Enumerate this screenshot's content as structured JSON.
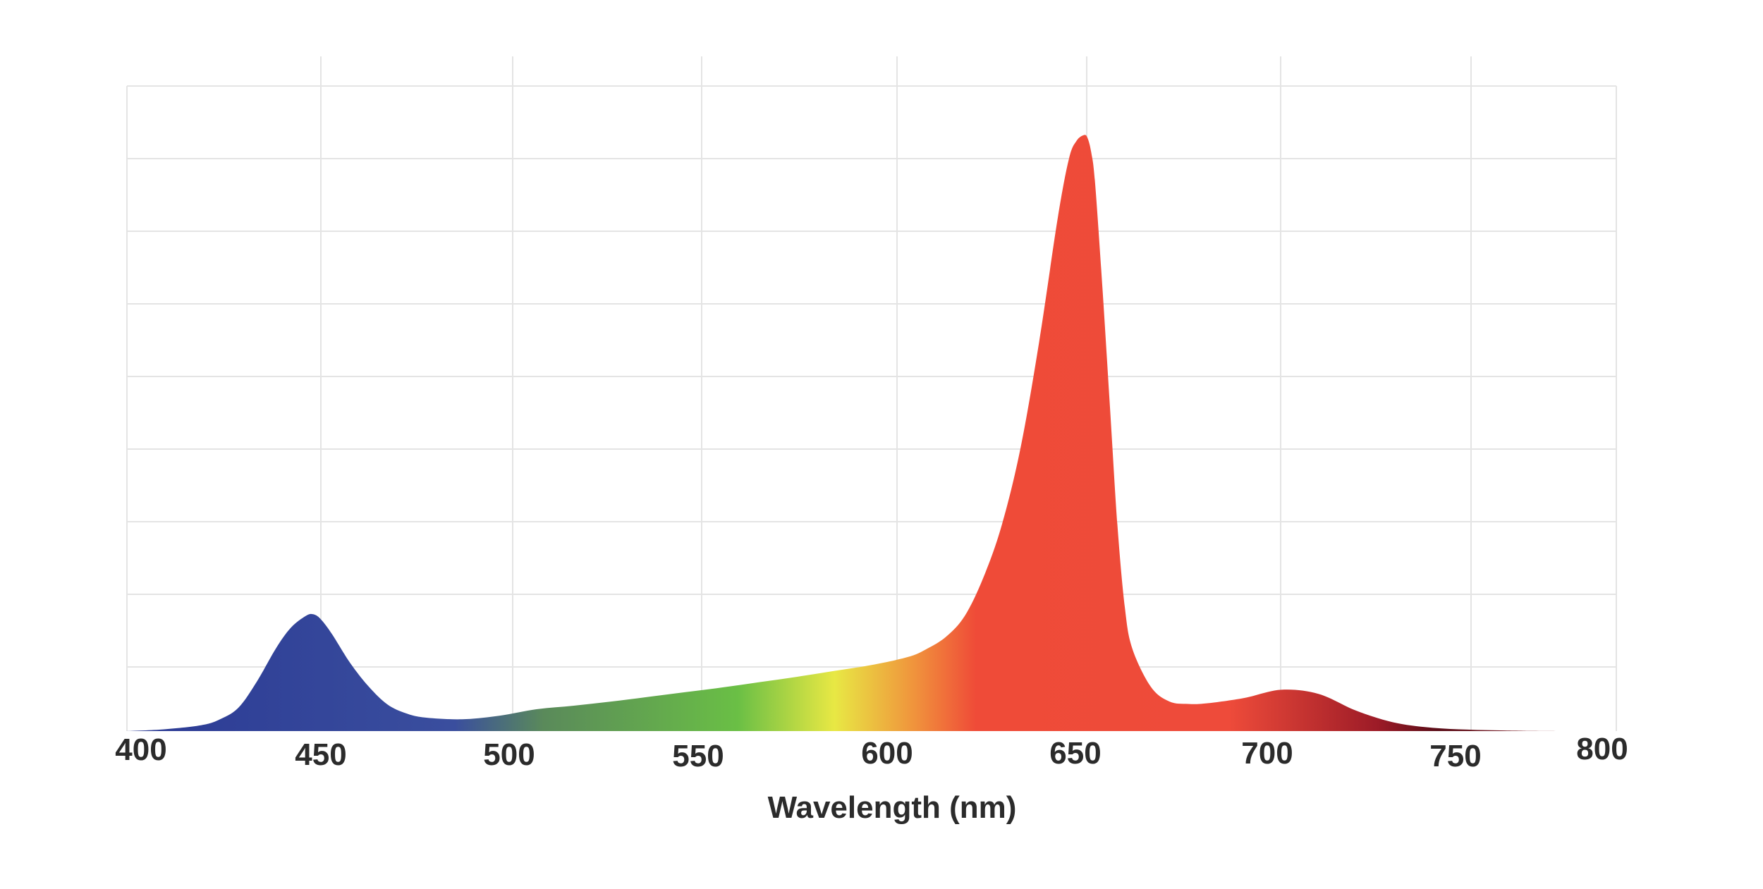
{
  "chart_data": {
    "type": "area",
    "title": "",
    "xlabel": "Wavelength (nm)",
    "ylabel": "",
    "xlim": [
      400,
      800
    ],
    "ylim": [
      0,
      100
    ],
    "x_ticks": [
      "400",
      "450",
      "500",
      "550",
      "600",
      "650",
      "700",
      "750",
      "800"
    ],
    "grid": true,
    "legend": "none",
    "series": [
      {
        "x": [
          400,
          410,
          420,
          425,
          430,
          435,
          440,
          444,
          448,
          450,
          452,
          455,
          460,
          465,
          470,
          475,
          480,
          490,
          500,
          510,
          520,
          530,
          540,
          550,
          560,
          570,
          580,
          590,
          600,
          610,
          615,
          620,
          625,
          630,
          635,
          640,
          645,
          650,
          653,
          655,
          657,
          658,
          659,
          660,
          662,
          664,
          666,
          668,
          670,
          675,
          680,
          685,
          690,
          700,
          710,
          720,
          730,
          740,
          750,
          760,
          770,
          780,
          800
        ],
        "y": [
          0,
          0.3,
          1,
          2,
          4,
          8.5,
          14,
          17.5,
          19.5,
          19.8,
          19,
          16.5,
          11.5,
          7.5,
          4.5,
          3,
          2.3,
          2,
          2.6,
          3.7,
          4.3,
          5,
          5.8,
          6.6,
          7.4,
          8.3,
          9.2,
          10.2,
          11.2,
          12.6,
          14,
          16,
          19.5,
          26,
          35,
          48,
          66,
          87,
          97,
          100,
          101,
          100.5,
          98,
          93,
          75,
          55,
          35,
          21,
          14,
          7.5,
          5,
          4.6,
          4.7,
          5.6,
          7,
          6.3,
          3.5,
          1.5,
          0.6,
          0.25,
          0.1,
          0.02,
          0
        ]
      }
    ],
    "colors": {
      "gradient": [
        "#2b3a94",
        "#3a4e9e",
        "#5a8a5a",
        "#6abf45",
        "#e8e844",
        "#f0913c",
        "#ef4b38",
        "#ee4b3a",
        "#9c1b27",
        "#5a0d18",
        "#a02e35"
      ],
      "grid": "#e4e4e4"
    }
  }
}
